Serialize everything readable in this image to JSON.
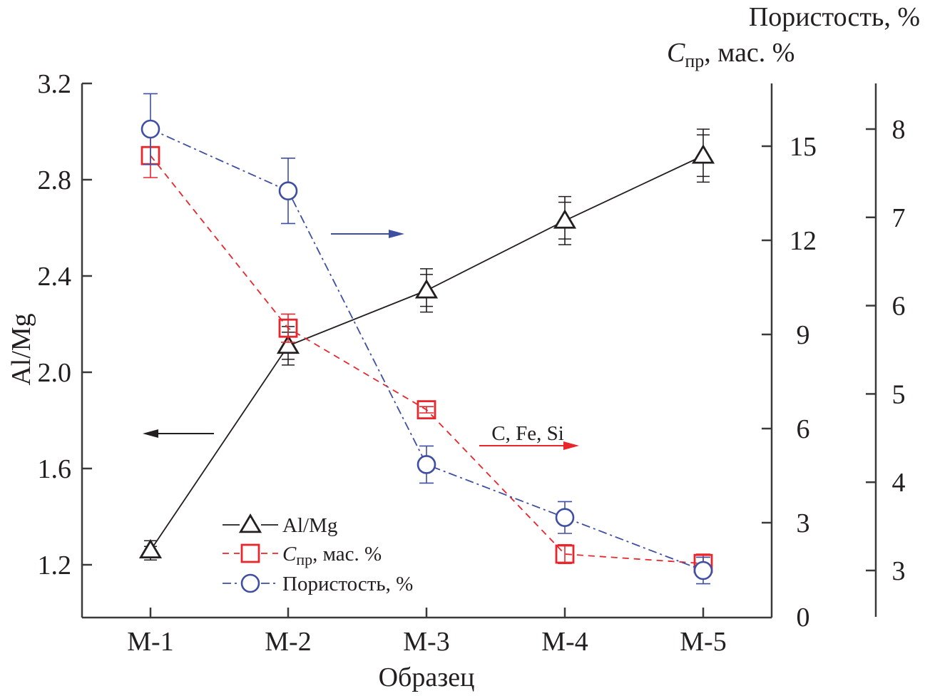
{
  "chart_data": {
    "type": "line",
    "title": "",
    "xlabel": "Образец",
    "categories": [
      "M-1",
      "M-2",
      "M-3",
      "M-4",
      "M-5"
    ],
    "axes": {
      "left": {
        "label": "Al/Mg",
        "ylim": [
          1.0,
          3.2
        ],
        "ticks": [
          1.2,
          1.6,
          2.0,
          2.4,
          2.8,
          3.2
        ],
        "tick_labels": [
          "1.2",
          "1.6",
          "2.0",
          "2.4",
          "2.8",
          "3.2"
        ]
      },
      "right1": {
        "label_main": "C",
        "label_sub": "пр",
        "label_rest": ", мас. %",
        "ylim": [
          0,
          18
        ],
        "ticks": [
          0,
          3,
          6,
          9,
          12,
          15
        ],
        "tick_labels": [
          "0",
          "3",
          "6",
          "9",
          "12",
          "15"
        ]
      },
      "right2": {
        "label": "Пористость, %",
        "ylim": [
          2.5,
          8.5
        ],
        "ticks": [
          3,
          4,
          5,
          6,
          7,
          8
        ],
        "tick_labels": [
          "3",
          "4",
          "5",
          "6",
          "7",
          "8"
        ]
      }
    },
    "series": [
      {
        "name": "Al/Mg",
        "axis": "left",
        "marker": "triangle",
        "line_style": "solid",
        "color": "#231f20",
        "values": [
          1.26,
          2.11,
          2.34,
          2.63,
          2.9
        ],
        "errors": [
          0.04,
          0.08,
          0.09,
          0.1,
          0.11
        ]
      },
      {
        "name": "Cпр, мас. %",
        "axis": "right1",
        "marker": "square",
        "line_style": "dashed",
        "color": "#e8262c",
        "values": [
          14.7,
          9.2,
          6.6,
          2.0,
          1.7
        ],
        "errors": [
          0.7,
          0.45,
          0.1,
          0.3,
          0.3
        ]
      },
      {
        "name": "Пористость, %",
        "axis": "right2",
        "marker": "circle",
        "line_style": "dashdot",
        "color": "#3e4fa3",
        "values": [
          8.0,
          7.3,
          4.2,
          3.6,
          3.0
        ],
        "errors": [
          0.4,
          0.37,
          0.21,
          0.18,
          0.15
        ]
      }
    ],
    "legend": {
      "placement": "bottom-left",
      "entries": [
        {
          "label": "Al/Mg"
        },
        {
          "label_main": "C",
          "label_sub": "пр",
          "label_rest": ", мас. %"
        },
        {
          "label": "Пористость, %"
        }
      ]
    },
    "annotations": [
      {
        "type": "arrow",
        "direction": "left",
        "color": "#231f20",
        "refers_to": "Al/Mg",
        "text": ""
      },
      {
        "type": "arrow",
        "direction": "right",
        "color": "#3e4fa3",
        "refers_to": "Пористость, %",
        "text": ""
      },
      {
        "type": "arrow",
        "direction": "right",
        "color": "#e8262c",
        "refers_to": "Cпр, мас. %",
        "text": "C, Fe, Si"
      }
    ],
    "grid": false
  }
}
